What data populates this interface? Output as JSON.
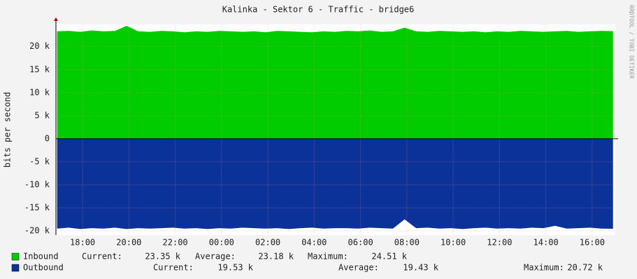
{
  "chart_data": {
    "type": "area",
    "title": "Kalinka - Sektor 6 - Traffic - bridge6",
    "y_label": "bits per second",
    "watermark": "RRDTOOL / TOBI OETIKER",
    "x": [
      16.9,
      17.4,
      17.9,
      18.4,
      18.9,
      19.4,
      19.9,
      20.4,
      20.9,
      21.4,
      21.9,
      22.4,
      22.9,
      23.4,
      23.9,
      24.4,
      24.9,
      25.4,
      25.9,
      26.4,
      26.9,
      27.4,
      27.9,
      28.4,
      28.9,
      29.4,
      29.9,
      30.4,
      30.9,
      31.4,
      31.9,
      32.4,
      32.9,
      33.4,
      33.9,
      34.4,
      34.9,
      35.4,
      35.9,
      36.4,
      36.9,
      37.4,
      37.9,
      38.4,
      38.9,
      39.4,
      39.9,
      40.4,
      40.9
    ],
    "xlim": [
      16.85,
      41.0
    ],
    "xticks": [
      {
        "value": 18,
        "label": "18:00"
      },
      {
        "value": 20,
        "label": "20:00"
      },
      {
        "value": 22,
        "label": "22:00"
      },
      {
        "value": 24,
        "label": "00:00"
      },
      {
        "value": 26,
        "label": "02:00"
      },
      {
        "value": 28,
        "label": "04:00"
      },
      {
        "value": 30,
        "label": "06:00"
      },
      {
        "value": 32,
        "label": "08:00"
      },
      {
        "value": 34,
        "label": "10:00"
      },
      {
        "value": 36,
        "label": "12:00"
      },
      {
        "value": 38,
        "label": "14:00"
      },
      {
        "value": 40,
        "label": "16:00"
      }
    ],
    "ylim": [
      -20900,
      24800
    ],
    "yticks": [
      {
        "value": -20000,
        "label": "-20 k"
      },
      {
        "value": -15000,
        "label": "-15 k"
      },
      {
        "value": -10000,
        "label": "-10 k"
      },
      {
        "value": -5000,
        "label": "-5 k"
      },
      0,
      {
        "value": 5000,
        "label": "5 k"
      },
      {
        "value": 10000,
        "label": "10 k"
      },
      {
        "value": 15000,
        "label": "15 k"
      },
      {
        "value": 20000,
        "label": "20 k"
      }
    ],
    "grid": true,
    "series": [
      {
        "name": "Inbound",
        "color": "#00cc00",
        "values": [
          23300,
          23400,
          23200,
          23500,
          23300,
          23400,
          24500,
          23300,
          23200,
          23400,
          23300,
          23100,
          23300,
          23200,
          23400,
          23300,
          23200,
          23300,
          23100,
          23400,
          23300,
          23200,
          23100,
          23300,
          23200,
          23400,
          23300,
          23500,
          23200,
          23300,
          24100,
          23300,
          23200,
          23400,
          23300,
          23200,
          23300,
          23100,
          23300,
          23200,
          23400,
          23300,
          23200,
          23300,
          23400,
          23200,
          23300,
          23400,
          23350
        ],
        "stats": [
          {
            "label": "Current:",
            "value": "23.35 k"
          },
          {
            "label": "Average:",
            "value": "23.18 k"
          },
          {
            "label": "Maximum:",
            "value": "24.51 k"
          }
        ]
      },
      {
        "name": "Outbound",
        "color": "#0b3299",
        "values": [
          -19500,
          -19300,
          -19600,
          -19400,
          -19500,
          -19300,
          -19600,
          -19400,
          -19500,
          -19400,
          -19300,
          -19500,
          -19400,
          -19600,
          -19400,
          -19500,
          -19300,
          -19400,
          -19500,
          -19400,
          -19600,
          -19400,
          -19300,
          -19500,
          -19400,
          -19400,
          -19500,
          -19300,
          -19400,
          -19500,
          -17500,
          -19400,
          -19300,
          -19500,
          -19400,
          -19600,
          -19400,
          -19300,
          -19500,
          -19400,
          -19500,
          -19300,
          -19400,
          -18900,
          -19500,
          -19400,
          -19300,
          -19500,
          -19530
        ],
        "stats": [
          {
            "label": "Current:",
            "value": "19.53 k"
          },
          {
            "label": "Average:",
            "value": "19.43 k"
          },
          {
            "label": "Maximum:",
            "value": "20.72 k"
          }
        ]
      }
    ]
  }
}
